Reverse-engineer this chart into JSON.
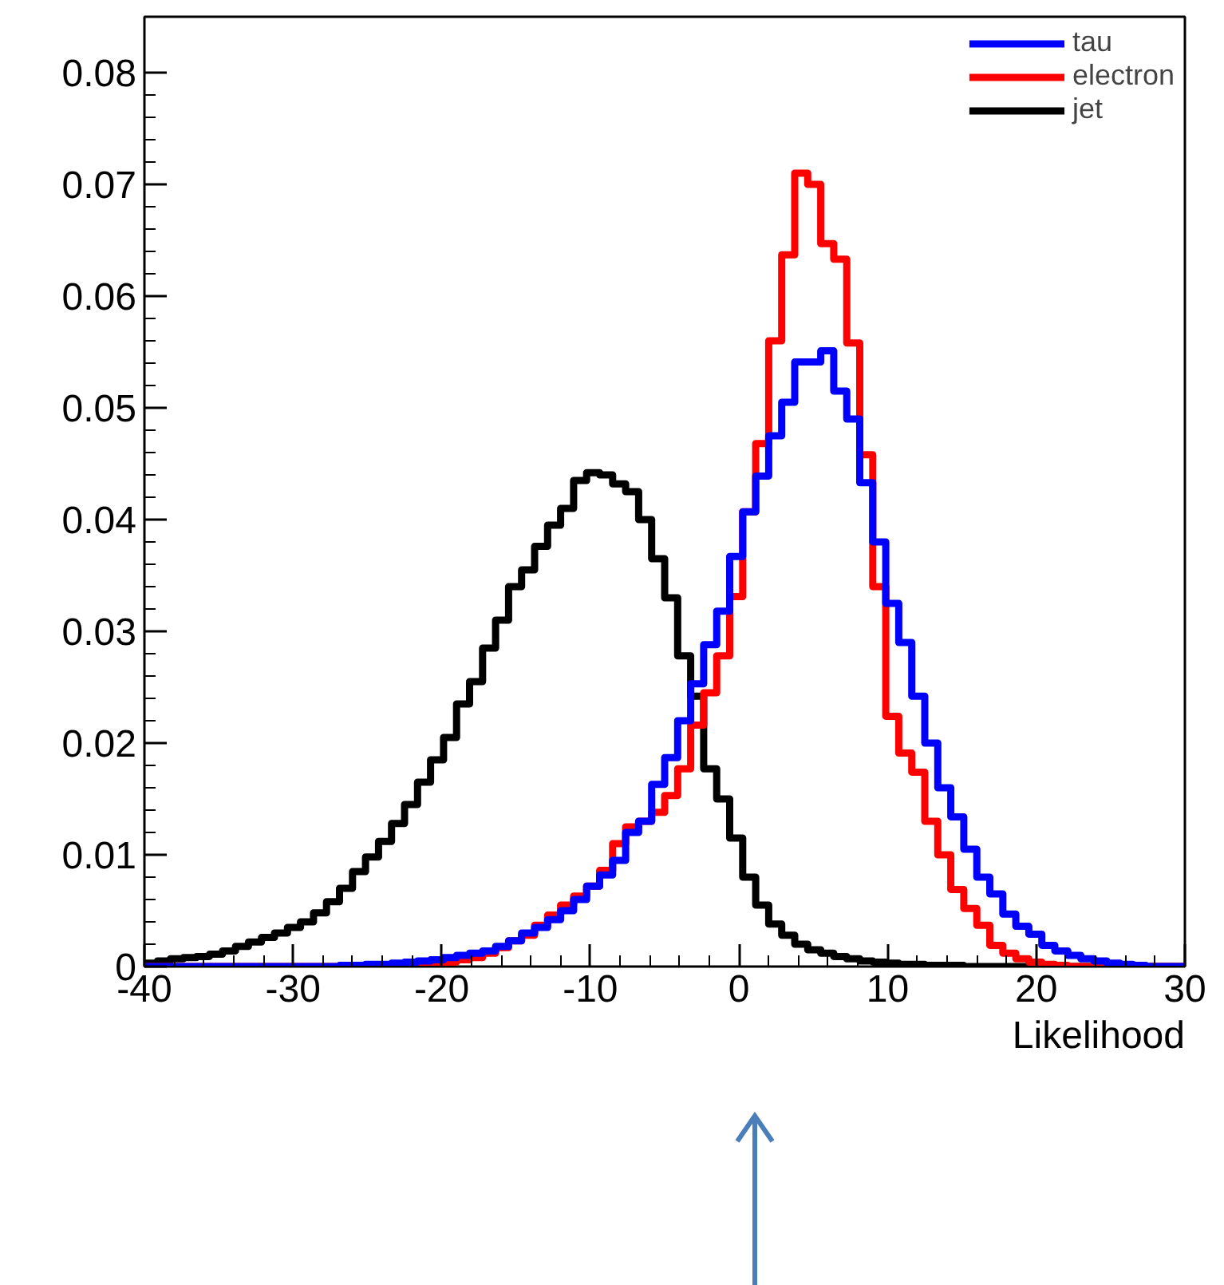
{
  "chart_data": {
    "type": "histogram",
    "xlabel": "Likelihood",
    "bins": [
      -40,
      -39.125,
      -38.25,
      -37.375,
      -36.5,
      -35.625,
      -34.75,
      -33.875,
      -33,
      -32.125,
      -31.25,
      -30.375,
      -29.5,
      -28.625,
      -27.75,
      -26.875,
      -26,
      -25.125,
      -24.25,
      -23.375,
      -22.5,
      -21.625,
      -20.75,
      -19.875,
      -19,
      -18.125,
      -17.25,
      -16.375,
      -15.5,
      -14.625,
      -13.75,
      -12.875,
      -12,
      -11.125,
      -10.25,
      -9.375,
      -8.5,
      -7.625,
      -6.75,
      -5.875,
      -5,
      -4.125,
      -3.25,
      -2.375,
      -1.5,
      -0.625,
      0.25,
      1.125,
      2,
      2.875,
      3.75,
      4.625,
      5.5,
      6.375,
      7.25,
      8.125,
      9,
      9.875,
      10.75,
      11.625,
      12.5,
      13.375,
      14.25,
      15.125,
      16,
      16.875,
      17.75,
      18.625,
      19.5,
      20.375,
      21.25,
      22.125,
      23,
      23.875,
      24.75,
      25.625,
      26.5,
      27.375,
      28.25,
      29.125,
      30
    ],
    "series": [
      {
        "name": "tau",
        "color": "#0000ff",
        "values": [
          0,
          0,
          0,
          0,
          0,
          0,
          0,
          0,
          0,
          0,
          0,
          0,
          0,
          0,
          0,
          0.0001,
          0.0001,
          0.0002,
          0.0002,
          0.0003,
          0.0004,
          0.0005,
          0.0006,
          0.0008,
          0.001,
          0.0012,
          0.0014,
          0.0018,
          0.0023,
          0.003,
          0.0035,
          0.0042,
          0.005,
          0.006,
          0.0072,
          0.0082,
          0.0095,
          0.012,
          0.013,
          0.0163,
          0.0187,
          0.022,
          0.0253,
          0.0288,
          0.0318,
          0.0367,
          0.0407,
          0.0439,
          0.0475,
          0.0505,
          0.0541,
          0.0541,
          0.0551,
          0.0515,
          0.049,
          0.0433,
          0.038,
          0.0325,
          0.029,
          0.0242,
          0.02,
          0.016,
          0.0134,
          0.0105,
          0.008,
          0.0065,
          0.0047,
          0.0036,
          0.0029,
          0.0019,
          0.0014,
          0.001,
          0.0007,
          0.0005,
          0.0003,
          0.0002,
          0.0001,
          0,
          0,
          0
        ]
      },
      {
        "name": "electron",
        "color": "#ff0000",
        "values": [
          0,
          0,
          0,
          0,
          0,
          0,
          0,
          0,
          0,
          0,
          0,
          0,
          0,
          0,
          0,
          0,
          0,
          0,
          0,
          0,
          0.0001,
          0.0002,
          0.0003,
          0.0004,
          0.0006,
          0.0008,
          0.0012,
          0.0017,
          0.0023,
          0.0028,
          0.0037,
          0.0046,
          0.0055,
          0.0063,
          0.0072,
          0.0086,
          0.011,
          0.0125,
          0.013,
          0.0138,
          0.0153,
          0.0177,
          0.0216,
          0.0245,
          0.0278,
          0.0331,
          0.0407,
          0.0468,
          0.056,
          0.0637,
          0.071,
          0.07,
          0.0647,
          0.0633,
          0.0558,
          0.0458,
          0.034,
          0.0224,
          0.0191,
          0.0174,
          0.013,
          0.01,
          0.0069,
          0.0052,
          0.0037,
          0.0019,
          0.0012,
          0.0007,
          0.0004,
          0.0002,
          0.0001,
          0,
          0,
          0,
          0,
          0,
          0,
          0,
          0,
          0
        ]
      },
      {
        "name": "jet",
        "color": "#000000",
        "values": [
          0.0003,
          0.0005,
          0.0007,
          0.0008,
          0.0009,
          0.0011,
          0.0014,
          0.0018,
          0.0022,
          0.0026,
          0.003,
          0.0035,
          0.004,
          0.0048,
          0.0058,
          0.007,
          0.0085,
          0.0098,
          0.0112,
          0.0128,
          0.0145,
          0.0165,
          0.0185,
          0.0205,
          0.0235,
          0.0255,
          0.0285,
          0.031,
          0.034,
          0.0355,
          0.0376,
          0.0395,
          0.041,
          0.0435,
          0.0442,
          0.044,
          0.0432,
          0.0425,
          0.04,
          0.0365,
          0.033,
          0.0278,
          0.0242,
          0.0177,
          0.015,
          0.0115,
          0.008,
          0.0055,
          0.0038,
          0.0028,
          0.002,
          0.0015,
          0.0012,
          0.0009,
          0.0007,
          0.0005,
          0.0004,
          0.0003,
          0.0002,
          0.0002,
          0.0001,
          0.0001,
          0.0001,
          0,
          0,
          0,
          0,
          0,
          0,
          0,
          0,
          0,
          0,
          0,
          0,
          0,
          0,
          0,
          0,
          0
        ]
      }
    ],
    "xlim": [
      -40,
      30
    ],
    "ylim": [
      0,
      0.085
    ],
    "xticks": [
      -40,
      -30,
      -20,
      -10,
      0,
      10,
      20,
      30
    ],
    "yticks": [
      0,
      0.01,
      0.02,
      0.03,
      0.04,
      0.05,
      0.06,
      0.07,
      0.08
    ],
    "grid": false,
    "legend": "top right",
    "line_style": "solid"
  }
}
